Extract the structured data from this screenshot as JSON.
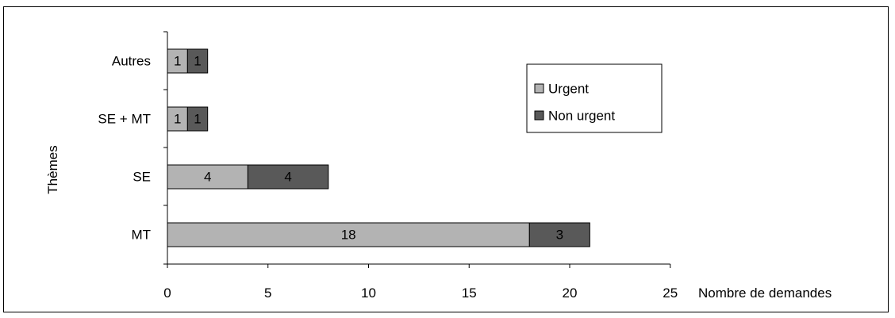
{
  "chart_data": {
    "type": "bar",
    "orientation": "horizontal",
    "stacked": true,
    "categories": [
      "MT",
      "SE",
      "SE + MT",
      "Autres"
    ],
    "series": [
      {
        "name": "Urgent",
        "values": [
          18,
          4,
          1,
          1
        ],
        "color": "#b3b3b3"
      },
      {
        "name": "Non urgent",
        "values": [
          3,
          4,
          1,
          1
        ],
        "color": "#595959"
      }
    ],
    "xlabel": "Nombre de demandes",
    "ylabel": "Thèmes",
    "xlim": [
      0,
      25
    ],
    "xticks": [
      0,
      5,
      10,
      15,
      20,
      25
    ],
    "grid": false,
    "legend_position": "right"
  }
}
